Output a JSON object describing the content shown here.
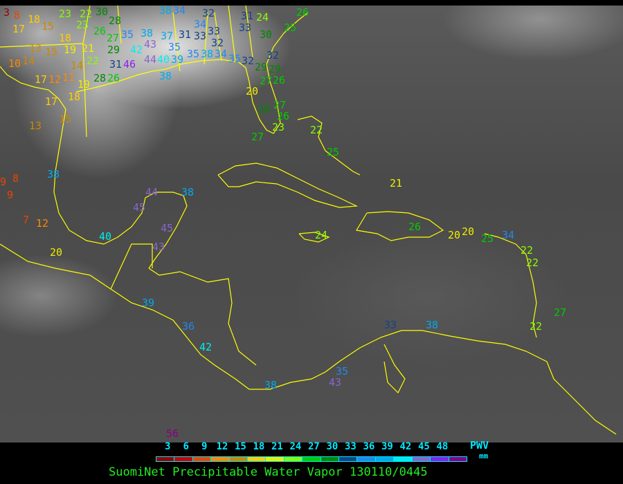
{
  "legend": {
    "ticks": [
      "3",
      "6",
      "9",
      "12",
      "15",
      "18",
      "21",
      "24",
      "27",
      "30",
      "33",
      "36",
      "39",
      "42",
      "45",
      "48"
    ],
    "unit_label": "PWV",
    "unit": "mm",
    "colors": [
      "#990000",
      "#cc0000",
      "#ee4400",
      "#ff8800",
      "#cc8800",
      "#ffcc00",
      "#eeee00",
      "#88ff00",
      "#00cc00",
      "#008800",
      "#114488",
      "#2288ee",
      "#00aaee",
      "#00eeee",
      "#8866cc",
      "#8822ee",
      "#880088"
    ]
  },
  "title": "SuomiNet Precipitable Water Vapor 130110/0445",
  "coastline_color": "#ffff00",
  "stations": [
    "3",
    "8",
    "18",
    "17",
    "15",
    "18",
    "19",
    "13",
    "15",
    "10",
    "14",
    "21",
    "22",
    "14",
    "17",
    "12",
    "11",
    "19",
    "28",
    "26",
    "23",
    "22",
    "23",
    "26",
    "27",
    "28",
    "29",
    "30",
    "35",
    "38",
    "37",
    "31",
    "43",
    "42",
    "35",
    "31",
    "46",
    "44",
    "40",
    "39",
    "38",
    "38",
    "34",
    "34",
    "32",
    "33",
    "33",
    "32",
    "35",
    "38",
    "34",
    "35",
    "32",
    "33",
    "31",
    "24",
    "30",
    "32",
    "25",
    "26",
    "29",
    "29",
    "27",
    "26",
    "20",
    "27",
    "26",
    "28",
    "23",
    "27",
    "17",
    "18",
    "15",
    "13",
    "22",
    "25",
    "21",
    "38",
    "9",
    "8",
    "9",
    "7",
    "12",
    "20",
    "40",
    "44",
    "45",
    "38",
    "45",
    "43",
    "24",
    "26",
    "20",
    "20",
    "25",
    "34",
    "22",
    "22",
    "27",
    "22",
    "33",
    "38",
    "36",
    "39",
    "42",
    "35",
    "43",
    "38",
    "56"
  ]
}
